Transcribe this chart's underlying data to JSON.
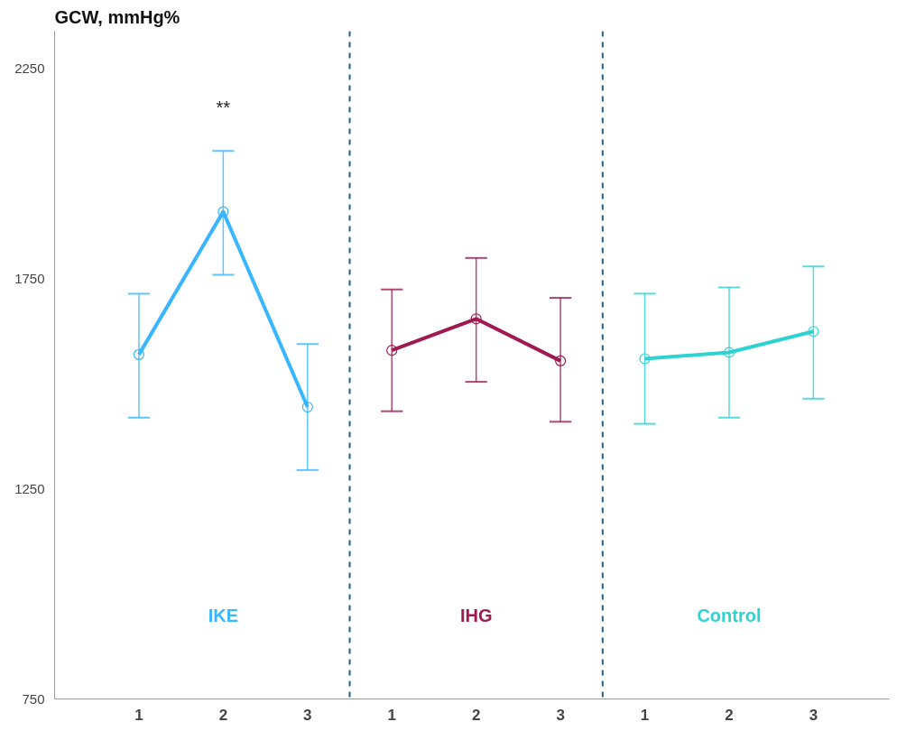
{
  "chart_data": {
    "type": "line",
    "title": "GCW, mmHg%",
    "categories": [
      "1",
      "2",
      "3",
      "1",
      "2",
      "3",
      "1",
      "2",
      "3"
    ],
    "series": [
      {
        "name": "IKE",
        "color": "#38b6ff",
        "values": [
          1570,
          1910,
          1445,
          null,
          null,
          null,
          null,
          null,
          null
        ],
        "errors": [
          [
            1420,
            1715
          ],
          [
            1760,
            2055
          ],
          [
            1295,
            1595
          ],
          null,
          null,
          null,
          null,
          null,
          null
        ]
      },
      {
        "name": "IHG",
        "color": "#9e1a50",
        "values": [
          null,
          null,
          null,
          1580,
          1655,
          1555,
          null,
          null,
          null
        ],
        "errors": [
          null,
          null,
          null,
          [
            1435,
            1725
          ],
          [
            1505,
            1800
          ],
          [
            1410,
            1705
          ],
          null,
          null,
          null
        ]
      },
      {
        "name": "Control",
        "color": "#2ed3d0",
        "values": [
          null,
          null,
          null,
          null,
          null,
          null,
          1560,
          1575,
          1625
        ],
        "errors": [
          null,
          null,
          null,
          null,
          null,
          null,
          [
            1405,
            1715
          ],
          [
            1420,
            1730
          ],
          [
            1465,
            1780
          ]
        ]
      }
    ],
    "annotations": [
      "**"
    ],
    "ylim": [
      750,
      2340
    ],
    "yticks": [
      750,
      1250,
      1750,
      2250
    ],
    "grid": false,
    "marker": "circle",
    "line_style": "solid"
  }
}
